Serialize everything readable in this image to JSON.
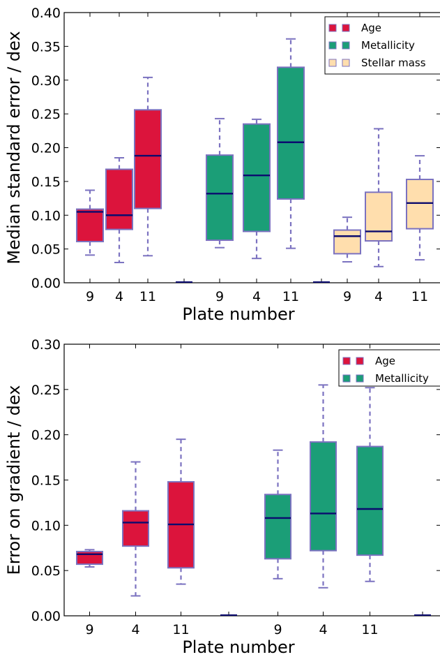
{
  "chart_data": [
    {
      "type": "box",
      "xlabel": "Plate number",
      "ylabel": "Median standard error / dex",
      "ylim": [
        0,
        0.4
      ],
      "yticks": [
        "0.00",
        "0.05",
        "0.10",
        "0.15",
        "0.20",
        "0.25",
        "0.30",
        "0.35",
        "0.40"
      ],
      "categories": [
        "9",
        "4",
        "11",
        "9",
        "4",
        "11",
        "9",
        "4",
        "11"
      ],
      "legend_position": "top-right",
      "series": [
        {
          "name": "Age",
          "color": "#dc143c",
          "boxes": [
            {
              "plate": "9",
              "whisker_low": 0.041,
              "q1": 0.061,
              "median": 0.105,
              "q3": 0.109,
              "whisker_high": 0.137
            },
            {
              "plate": "4",
              "whisker_low": 0.03,
              "q1": 0.079,
              "median": 0.1,
              "q3": 0.168,
              "whisker_high": 0.185
            },
            {
              "plate": "11",
              "whisker_low": 0.04,
              "q1": 0.11,
              "median": 0.188,
              "q3": 0.256,
              "whisker_high": 0.304
            }
          ]
        },
        {
          "name": "Metallicity",
          "color": "#1b9e77",
          "boxes": [
            {
              "plate": "9",
              "whisker_low": 0.052,
              "q1": 0.063,
              "median": 0.132,
              "q3": 0.189,
              "whisker_high": 0.243
            },
            {
              "plate": "4",
              "whisker_low": 0.036,
              "q1": 0.076,
              "median": 0.159,
              "q3": 0.235,
              "whisker_high": 0.242
            },
            {
              "plate": "11",
              "whisker_low": 0.051,
              "q1": 0.124,
              "median": 0.208,
              "q3": 0.319,
              "whisker_high": 0.361
            }
          ]
        },
        {
          "name": "Stellar mass",
          "color": "#ffdead",
          "boxes": [
            {
              "plate": "9",
              "whisker_low": 0.031,
              "q1": 0.043,
              "median": 0.069,
              "q3": 0.078,
              "whisker_high": 0.097
            },
            {
              "plate": "4",
              "whisker_low": 0.024,
              "q1": 0.062,
              "median": 0.076,
              "q3": 0.134,
              "whisker_high": 0.228
            },
            {
              "plate": "11",
              "whisker_low": 0.034,
              "q1": 0.08,
              "median": 0.118,
              "q3": 0.153,
              "whisker_high": 0.188
            }
          ]
        }
      ]
    },
    {
      "type": "box",
      "xlabel": "Plate number",
      "ylabel": "Error on gradient / dex",
      "ylim": [
        0,
        0.3
      ],
      "yticks": [
        "0.00",
        "0.05",
        "0.10",
        "0.15",
        "0.20",
        "0.25",
        "0.30"
      ],
      "categories": [
        "9",
        "4",
        "11",
        "9",
        "4",
        "11"
      ],
      "legend_position": "top-right",
      "series": [
        {
          "name": "Age",
          "color": "#dc143c",
          "boxes": [
            {
              "plate": "9",
              "whisker_low": 0.054,
              "q1": 0.057,
              "median": 0.068,
              "q3": 0.071,
              "whisker_high": 0.073
            },
            {
              "plate": "4",
              "whisker_low": 0.022,
              "q1": 0.077,
              "median": 0.103,
              "q3": 0.116,
              "whisker_high": 0.17
            },
            {
              "plate": "11",
              "whisker_low": 0.035,
              "q1": 0.053,
              "median": 0.101,
              "q3": 0.148,
              "whisker_high": 0.195
            }
          ]
        },
        {
          "name": "Metallicity",
          "color": "#1b9e77",
          "boxes": [
            {
              "plate": "9",
              "whisker_low": 0.041,
              "q1": 0.063,
              "median": 0.108,
              "q3": 0.134,
              "whisker_high": 0.183
            },
            {
              "plate": "4",
              "whisker_low": 0.031,
              "q1": 0.072,
              "median": 0.113,
              "q3": 0.192,
              "whisker_high": 0.255
            },
            {
              "plate": "11",
              "whisker_low": 0.038,
              "q1": 0.067,
              "median": 0.118,
              "q3": 0.187,
              "whisker_high": 0.252
            }
          ]
        }
      ]
    }
  ]
}
